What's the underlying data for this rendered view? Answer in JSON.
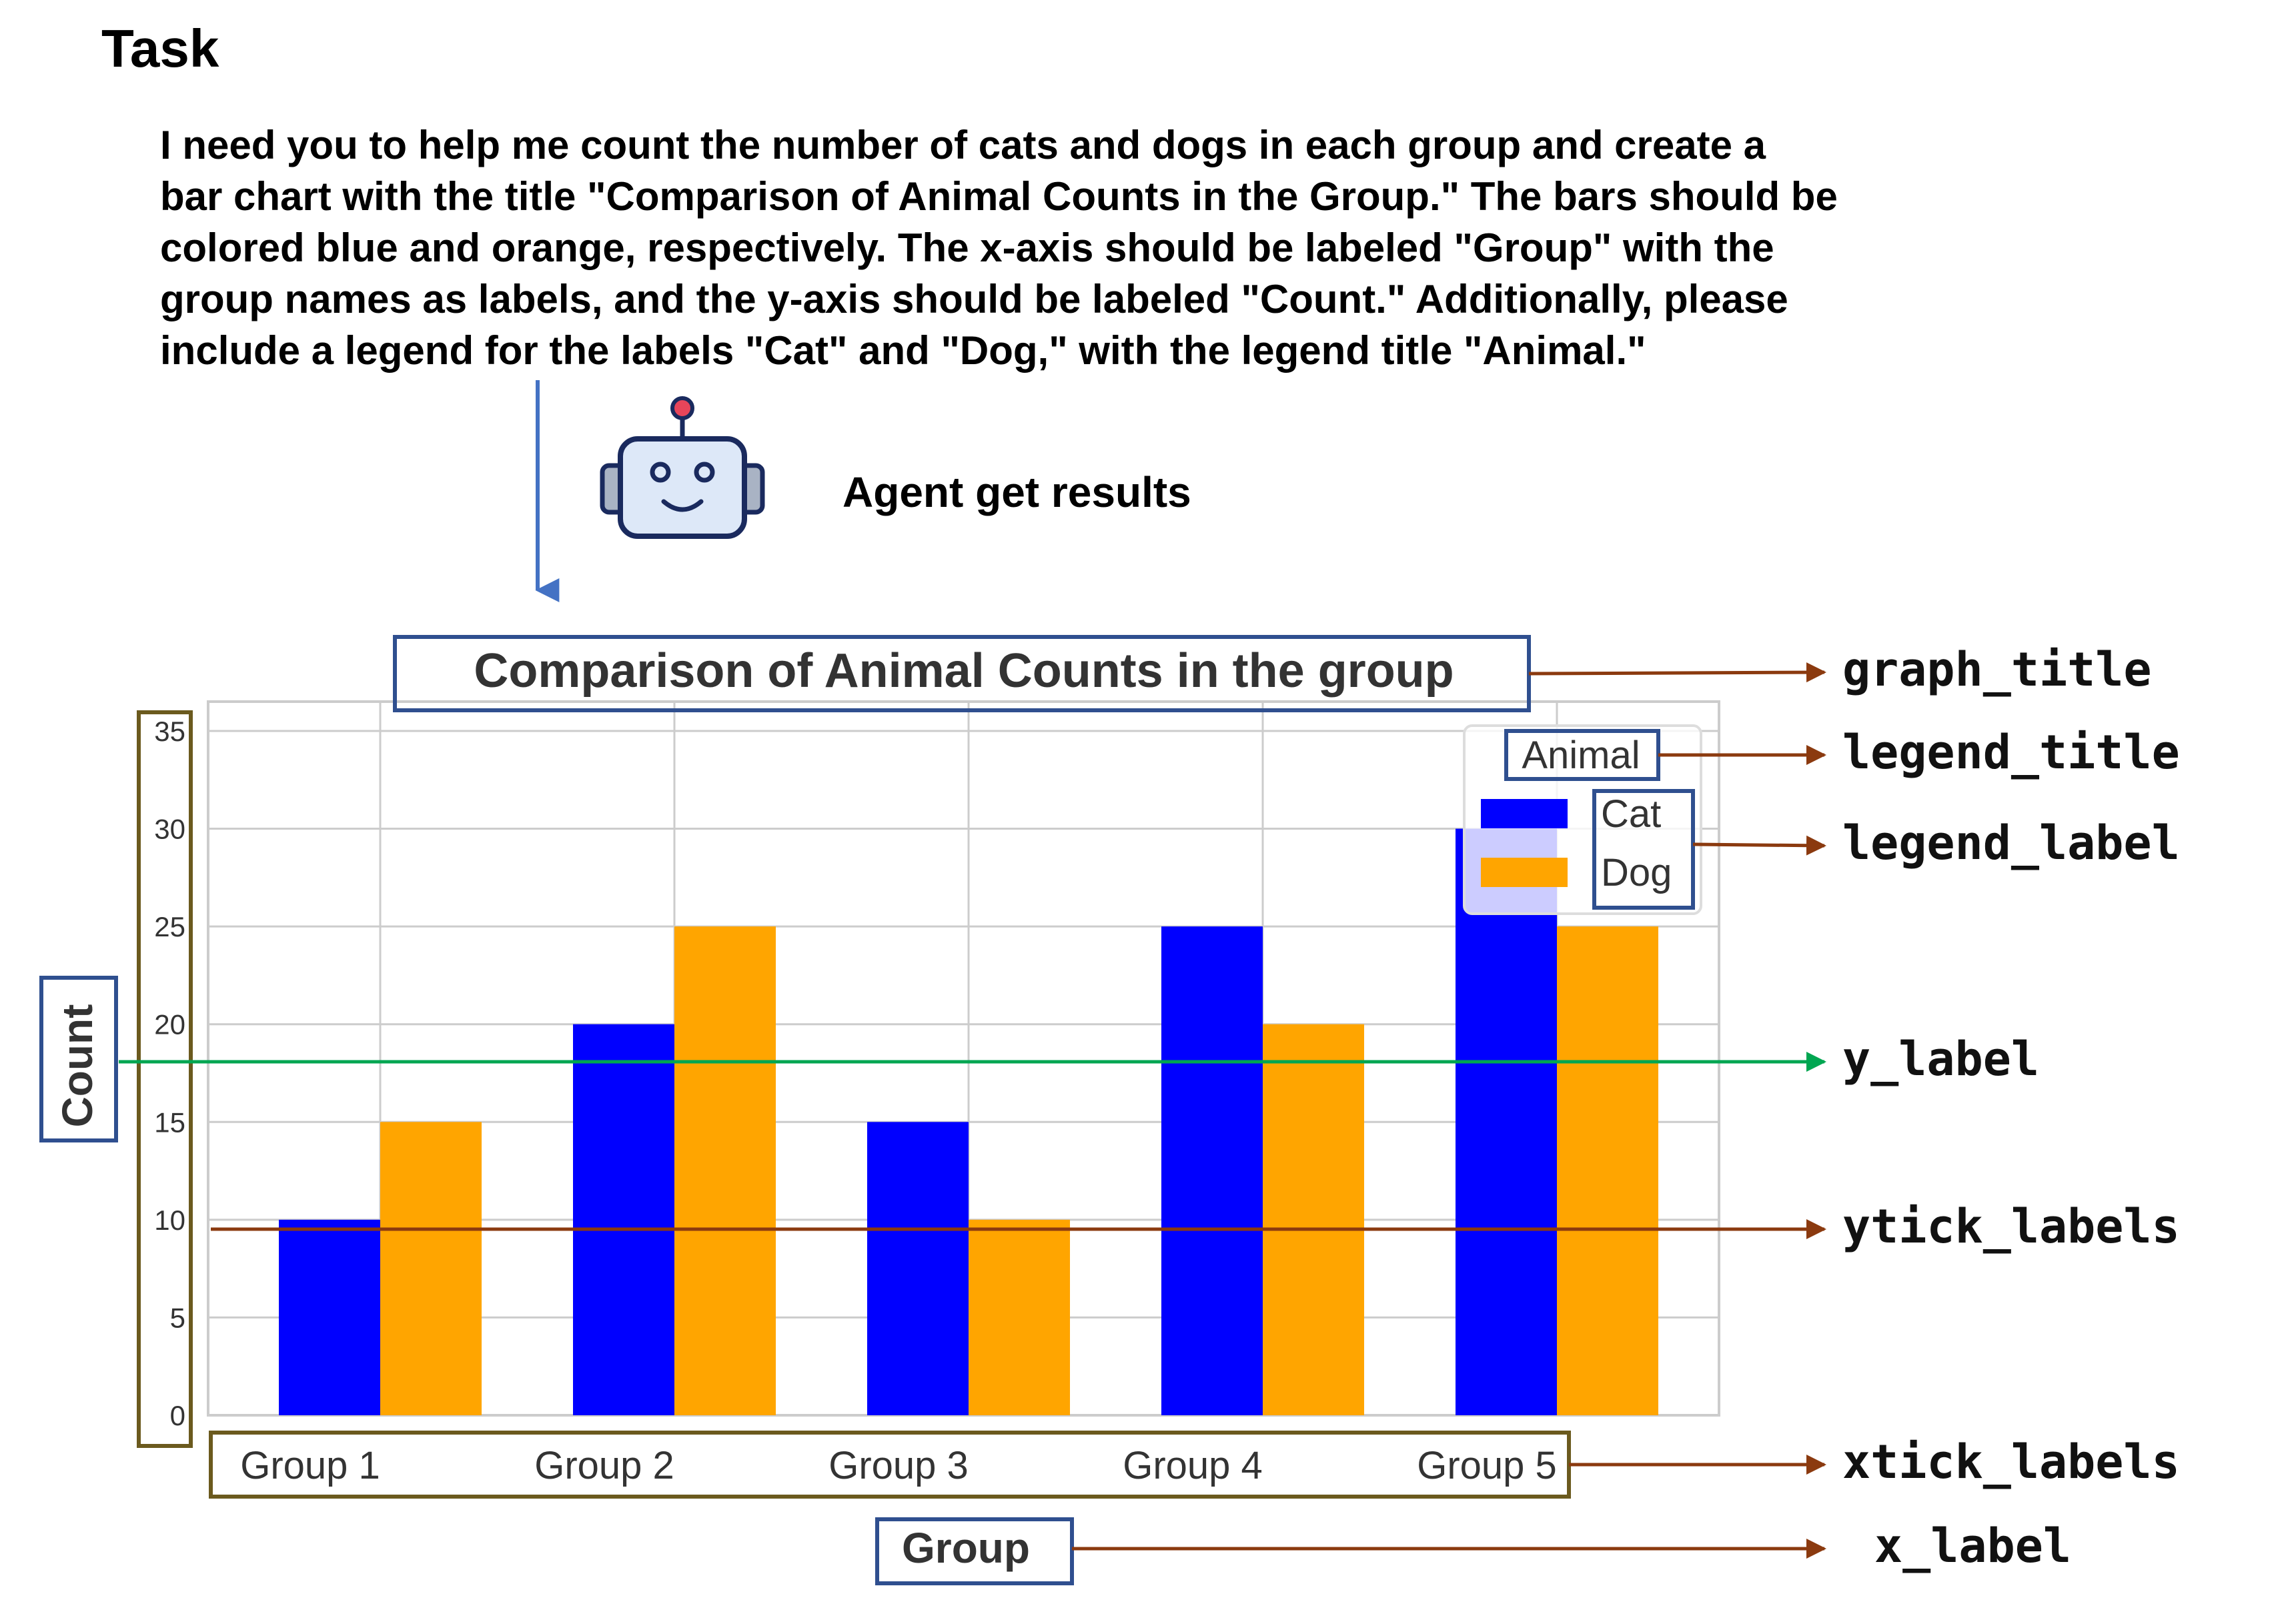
{
  "task": {
    "heading": "Task",
    "lines": [
      "I need you to help me count the number of cats and dogs in each group and create a",
      "bar chart with the title \"Comparison of Animal Counts in the Group.\" The bars should be",
      "colored blue and orange, respectively. The x-axis should be labeled \"Group\" with the",
      "group names as labels, and the y-axis should be labeled \"Count.\" Additionally, please",
      "include a legend for the labels \"Cat\" and \"Dog,\" with the legend title \"Animal.\""
    ]
  },
  "agent": {
    "caption": "Agent get results",
    "icon": "robot-icon"
  },
  "annotations": {
    "graph_title": "graph_title",
    "legend_title": "legend_title",
    "legend_label": "legend_label",
    "y_label": "y_label",
    "ytick_labels": "ytick_labels",
    "xtick_labels": "xtick_labels",
    "x_label": "x_label"
  },
  "colors": {
    "cat": "#0000ff",
    "dog": "#ffa500",
    "frame_blue": "#2f4f8f",
    "frame_gold": "#6b5a1e",
    "arrow_brown": "#8b3a0f",
    "arrow_green": "#00a651",
    "arrow_blue": "#4472c4"
  },
  "chart_data": {
    "type": "bar",
    "title": "Comparison of Animal Counts in the group",
    "xlabel": "Group",
    "ylabel": "Count",
    "categories": [
      "Group 1",
      "Group 2",
      "Group 3",
      "Group 4",
      "Group 5"
    ],
    "series": [
      {
        "name": "Cat",
        "values": [
          10,
          20,
          15,
          25,
          30
        ],
        "color": "#0000ff"
      },
      {
        "name": "Dog",
        "values": [
          15,
          25,
          10,
          20,
          25
        ],
        "color": "#ffa500"
      }
    ],
    "yticks": [
      0,
      5,
      10,
      15,
      20,
      25,
      30,
      35
    ],
    "ylim": [
      0,
      36.5
    ],
    "legend": {
      "title": "Animal",
      "position": "top-right"
    },
    "grid": true
  }
}
